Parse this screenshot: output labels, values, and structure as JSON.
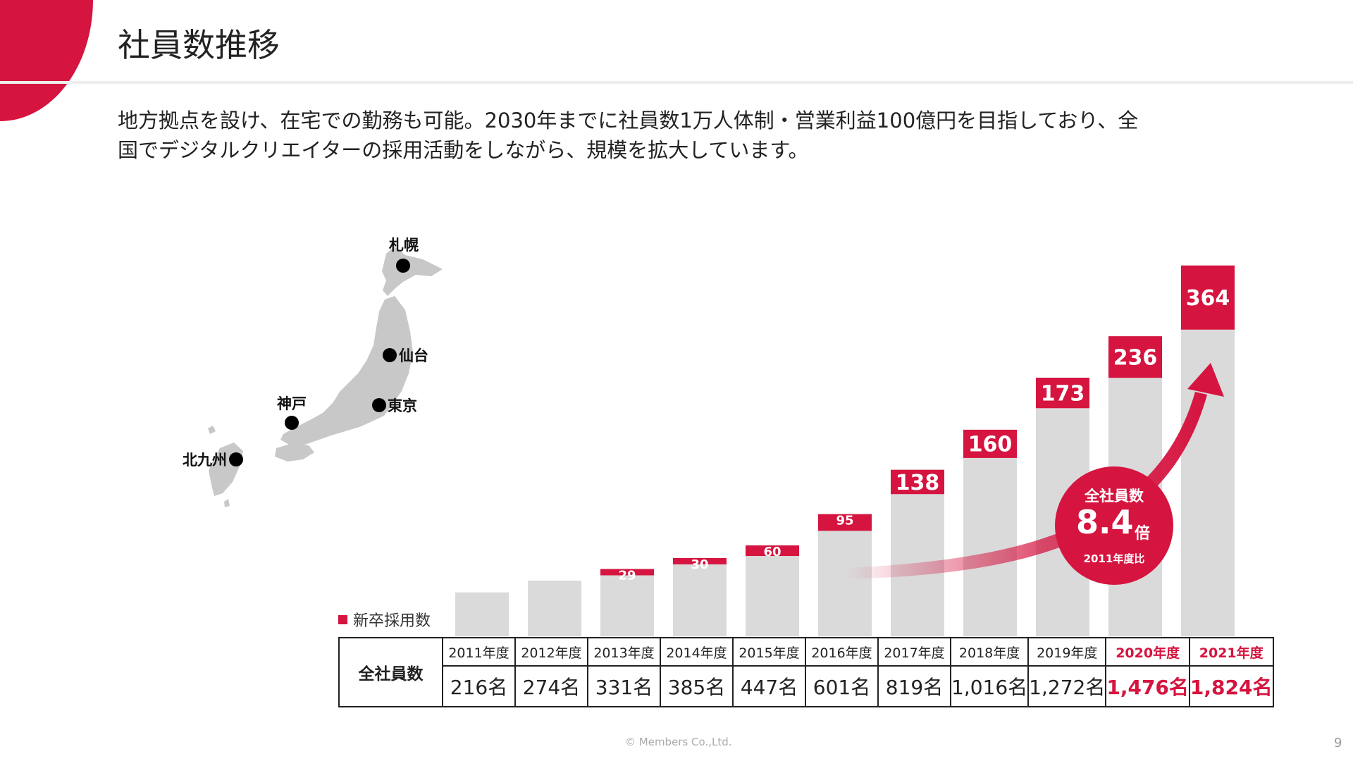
{
  "header": {
    "title": "社員数推移"
  },
  "description": {
    "line1": "地方拠点を設け、在宅での勤務も可能。2030年までに社員数1万人体制・営業利益100億円を目指しており、全",
    "line2": "国でデジタルクリエイターの採用活動をしながら、規模を拡大しています。"
  },
  "map": {
    "cities": [
      {
        "label": "札幌"
      },
      {
        "label": "仙台"
      },
      {
        "label": "東京"
      },
      {
        "label": "神戸"
      },
      {
        "label": "北九州"
      }
    ]
  },
  "chart_data": {
    "type": "bar",
    "categories": [
      "2011年度",
      "2012年度",
      "2013年度",
      "2014年度",
      "2015年度",
      "2016年度",
      "2017年度",
      "2018年度",
      "2019年度",
      "2020年度",
      "2021年度"
    ],
    "series": [
      {
        "name": "全社員数",
        "values": [
          216,
          274,
          331,
          385,
          447,
          601,
          819,
          1016,
          1272,
          1476,
          1824
        ]
      },
      {
        "name": "新卒採用数",
        "values": [
          null,
          null,
          29,
          30,
          60,
          95,
          138,
          160,
          173,
          236,
          364
        ]
      }
    ],
    "legend": {
      "label": "新卒採用数",
      "placement": "bottom-left"
    },
    "highlighted_categories": [
      "2020年度",
      "2021年度"
    ],
    "colors": {
      "accent": "#d5143f",
      "bar": "#dadadb"
    }
  },
  "table": {
    "row_header": "全社員数",
    "counts": [
      "216名",
      "274名",
      "331名",
      "385名",
      "447名",
      "601名",
      "819名",
      "1,016名",
      "1,272名",
      "1,476名",
      "1,824名"
    ]
  },
  "badge": {
    "line1": "全社員数",
    "value": "8.4",
    "unit": "倍",
    "note": "2011年度比"
  },
  "footer": {
    "copyright": "© Members Co.,Ltd.",
    "page": "9"
  }
}
